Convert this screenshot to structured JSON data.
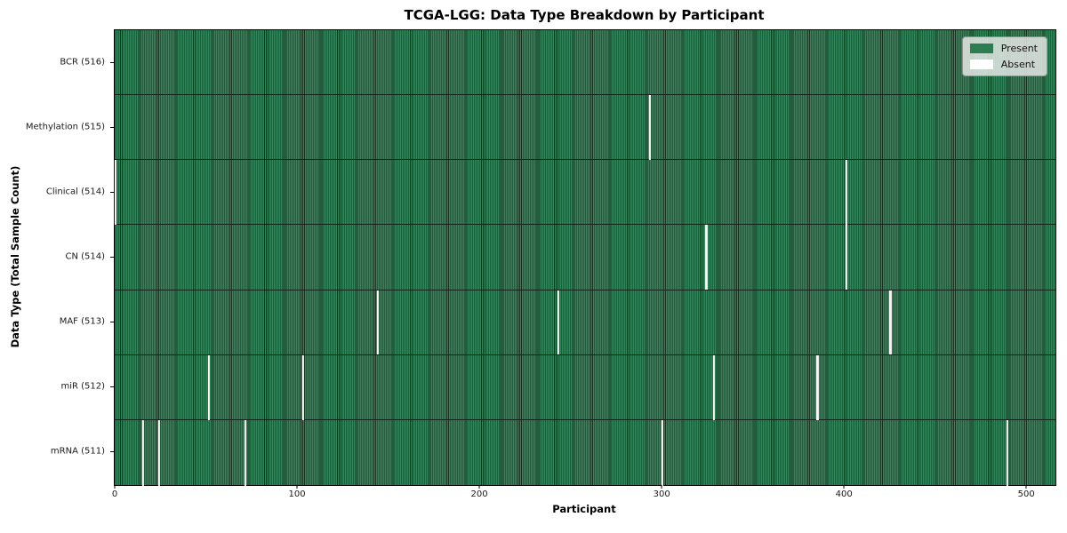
{
  "chart_data": {
    "type": "heatmap",
    "title": "TCGA-LGG: Data Type Breakdown by Participant",
    "xlabel": "Participant",
    "ylabel": "Data Type (Total Sample Count)",
    "n_participants": 516,
    "x_ticks": [
      0,
      100,
      200,
      300,
      400,
      500
    ],
    "legend_position": "upper right",
    "legend": [
      {
        "label": "Present",
        "color": "#2d7d52"
      },
      {
        "label": "Absent",
        "color": "#ffffff"
      }
    ],
    "colors": {
      "present_fill": "#35855c",
      "present_edge": "#14331f",
      "absent": "#f7f7f5",
      "row_divider": "#10241a"
    },
    "rows": [
      {
        "label": "BCR (516)",
        "data_type": "BCR",
        "present_count": 516,
        "absent_participants": []
      },
      {
        "label": "Methylation (515)",
        "data_type": "Methylation",
        "present_count": 515,
        "absent_participants": [
          293
        ]
      },
      {
        "label": "Clinical (514)",
        "data_type": "Clinical",
        "present_count": 514,
        "absent_participants": [
          0,
          401
        ]
      },
      {
        "label": "CN (514)",
        "data_type": "CN",
        "present_count": 514,
        "absent_participants": [
          324,
          401
        ]
      },
      {
        "label": "MAF (513)",
        "data_type": "MAF",
        "present_count": 513,
        "absent_participants": [
          144,
          243,
          425
        ]
      },
      {
        "label": "miR (512)",
        "data_type": "miR",
        "present_count": 512,
        "absent_participants": [
          51,
          103,
          328,
          385
        ]
      },
      {
        "label": "mRNA (511)",
        "data_type": "mRNA",
        "present_count": 511,
        "absent_participants": [
          15,
          24,
          71,
          300,
          489
        ]
      }
    ]
  }
}
